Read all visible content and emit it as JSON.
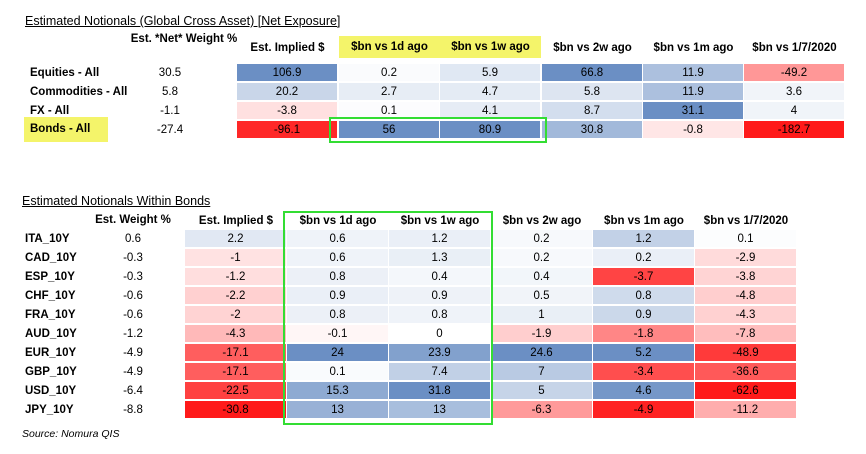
{
  "source": "Source: Nomura QIS",
  "chart_data": [
    {
      "type": "table",
      "title": "Estimated Notionals (Global Cross Asset) [Net Exposure]",
      "weight_header": "Est. *Net* Weight %",
      "columns": [
        "Est. Implied $",
        "$bn vs 1d ago",
        "$bn vs 1w ago",
        "$bn vs 2w ago",
        "$bn vs 1m ago",
        "$bn vs 1/7/2020"
      ],
      "highlighted_columns": [
        "$bn vs 1d ago",
        "$bn vs 1w ago"
      ],
      "rows": [
        {
          "label": "Equities - All",
          "weight": "30.5",
          "values": [
            106.9,
            0.2,
            5.9,
            66.8,
            11.9,
            -49.2
          ]
        },
        {
          "label": "Commodities - All",
          "weight": "5.8",
          "values": [
            20.2,
            2.7,
            4.7,
            5.8,
            11.9,
            3.6
          ]
        },
        {
          "label": "FX - All",
          "weight": "-1.1",
          "values": [
            -3.8,
            0.1,
            4.1,
            8.7,
            31.1,
            4
          ]
        },
        {
          "label": "Bonds - All",
          "weight": "-27.4",
          "highlighted": true,
          "values": [
            -96.1,
            56,
            80.9,
            30.8,
            -0.8,
            -182.7
          ]
        }
      ],
      "colors": {
        "positive": "#6b8fc4",
        "negative": "#ff1a1a",
        "neutral": "#ffffff",
        "highlight": "#f4f46a",
        "box": "#33dd33"
      }
    },
    {
      "type": "table",
      "title": "Estimated Notionals Within Bonds",
      "weight_header": "Est. Weight %",
      "columns": [
        "Est. Implied $",
        "$bn vs 1d ago",
        "$bn vs 1w ago",
        "$bn vs 2w ago",
        "$bn vs 1m ago",
        "$bn vs 1/7/2020"
      ],
      "rows": [
        {
          "label": "ITA_10Y",
          "weight": "0.6",
          "values": [
            2.2,
            0.6,
            1.2,
            0.2,
            1.2,
            0.1
          ]
        },
        {
          "label": "CAD_10Y",
          "weight": "-0.3",
          "values": [
            -1,
            0.6,
            1.3,
            0.2,
            0.2,
            -2.9
          ]
        },
        {
          "label": "ESP_10Y",
          "weight": "-0.3",
          "values": [
            -1.2,
            0.8,
            0.4,
            0.4,
            -3.7,
            -3.8
          ]
        },
        {
          "label": "CHF_10Y",
          "weight": "-0.6",
          "values": [
            -2.2,
            0.9,
            0.9,
            0.5,
            0.8,
            -4.8
          ]
        },
        {
          "label": "FRA_10Y",
          "weight": "-0.6",
          "values": [
            -2,
            0.8,
            0.8,
            1,
            0.9,
            -4.3
          ]
        },
        {
          "label": "AUD_10Y",
          "weight": "-1.2",
          "values": [
            -4.3,
            -0.1,
            0,
            -1.9,
            -1.8,
            -7.8
          ]
        },
        {
          "label": "EUR_10Y",
          "weight": "-4.9",
          "values": [
            -17.1,
            24,
            23.9,
            24.6,
            5.2,
            -48.9
          ]
        },
        {
          "label": "GBP_10Y",
          "weight": "-4.9",
          "values": [
            -17.1,
            0.1,
            7.4,
            7,
            -3.4,
            -36.6
          ]
        },
        {
          "label": "USD_10Y",
          "weight": "-6.4",
          "values": [
            -22.5,
            15.3,
            31.8,
            5,
            4.6,
            -62.6
          ]
        },
        {
          "label": "JPY_10Y",
          "weight": "-8.8",
          "values": [
            -30.8,
            13,
            13,
            -6.3,
            -4.9,
            -11.2
          ]
        }
      ],
      "colors": {
        "positive": "#6b8fc4",
        "negative": "#ff1a1a",
        "neutral": "#ffffff",
        "box": "#33dd33"
      }
    }
  ]
}
